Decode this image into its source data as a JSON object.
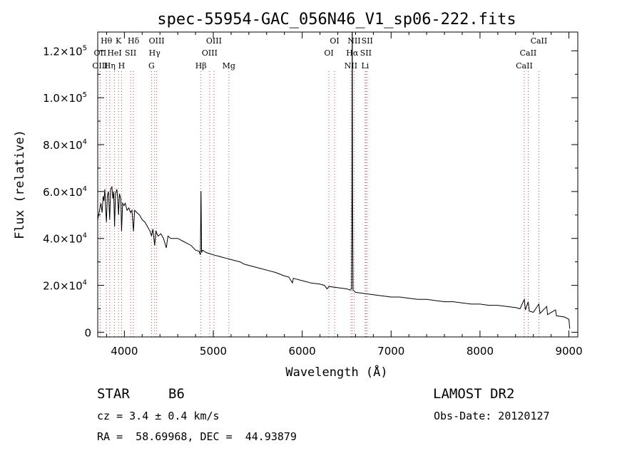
{
  "chart_data": {
    "type": "line",
    "title": "spec-55954-GAC_056N46_V1_sp06-222.fits",
    "xlabel": "Wavelength (Å)",
    "ylabel": "Flux (relative)",
    "xlim": [
      3700,
      9100
    ],
    "ylim": [
      -2000,
      128000
    ],
    "xticks": [
      {
        "value": 4000,
        "label": "4000"
      },
      {
        "value": 5000,
        "label": "5000"
      },
      {
        "value": 6000,
        "label": "6000"
      },
      {
        "value": 7000,
        "label": "7000"
      },
      {
        "value": 8000,
        "label": "8000"
      },
      {
        "value": 9000,
        "label": "9000"
      }
    ],
    "yticks": [
      {
        "value": 0,
        "label": "0",
        "exp": ""
      },
      {
        "value": 20000,
        "label": "2.0×10",
        "exp": "4"
      },
      {
        "value": 40000,
        "label": "4.0×10",
        "exp": "4"
      },
      {
        "value": 60000,
        "label": "6.0×10",
        "exp": "4"
      },
      {
        "value": 80000,
        "label": "8.0×10",
        "exp": "4"
      },
      {
        "value": 100000,
        "label": "1.0×10",
        "exp": "5"
      },
      {
        "value": 120000,
        "label": "1.2×10",
        "exp": "5"
      }
    ],
    "spectral_lines": [
      {
        "label": "Hθ",
        "x": 3798,
        "row": 1
      },
      {
        "label": "OII",
        "x": 3727,
        "row": 2
      },
      {
        "label": "OIII",
        "x": 3727,
        "row": 3
      },
      {
        "label": "K",
        "x": 3934,
        "row": 1
      },
      {
        "label": "HeI",
        "x": 3889,
        "row": 2
      },
      {
        "label": "Hη",
        "x": 3835,
        "row": 3
      },
      {
        "label": "SII",
        "x": 4070,
        "row": 2
      },
      {
        "label": "H",
        "x": 3968,
        "row": 3
      },
      {
        "label": "Hδ",
        "x": 4102,
        "row": 1
      },
      {
        "label": "OIII",
        "x": 4363,
        "row": 1
      },
      {
        "label": "Hγ",
        "x": 4340,
        "row": 2
      },
      {
        "label": "G",
        "x": 4305,
        "row": 3
      },
      {
        "label": "Hβ",
        "x": 4861,
        "row": 3
      },
      {
        "label": "OIII",
        "x": 5007,
        "row": 1
      },
      {
        "label": "OIII",
        "x": 4959,
        "row": 2
      },
      {
        "label": "Mg",
        "x": 5175,
        "row": 3
      },
      {
        "label": "OI",
        "x": 6364,
        "row": 1
      },
      {
        "label": "OI",
        "x": 6300,
        "row": 2
      },
      {
        "label": "NII",
        "x": 6584,
        "row": 1
      },
      {
        "label": "Hα",
        "x": 6563,
        "row": 2
      },
      {
        "label": "NII",
        "x": 6548,
        "row": 3
      },
      {
        "label": "SII",
        "x": 6731,
        "row": 1
      },
      {
        "label": "SII",
        "x": 6716,
        "row": 2
      },
      {
        "label": "Li",
        "x": 6708,
        "row": 3
      },
      {
        "label": "CaII",
        "x": 8662,
        "row": 1
      },
      {
        "label": "CaII",
        "x": 8542,
        "row": 2
      },
      {
        "label": "CaII",
        "x": 8498,
        "row": 3
      }
    ],
    "series": [
      {
        "name": "flux",
        "points": [
          [
            3700,
            48000
          ],
          [
            3720,
            52000
          ],
          [
            3735,
            55000
          ],
          [
            3750,
            51000
          ],
          [
            3760,
            58000
          ],
          [
            3770,
            56000
          ],
          [
            3780,
            61000
          ],
          [
            3790,
            52000
          ],
          [
            3798,
            47000
          ],
          [
            3808,
            58000
          ],
          [
            3820,
            60000
          ],
          [
            3835,
            48000
          ],
          [
            3845,
            61000
          ],
          [
            3860,
            62000
          ],
          [
            3870,
            57000
          ],
          [
            3880,
            60000
          ],
          [
            3889,
            45000
          ],
          [
            3900,
            59000
          ],
          [
            3915,
            61000
          ],
          [
            3925,
            57000
          ],
          [
            3934,
            50000
          ],
          [
            3945,
            59000
          ],
          [
            3960,
            57000
          ],
          [
            3968,
            43000
          ],
          [
            3980,
            55000
          ],
          [
            3995,
            54000
          ],
          [
            4010,
            55000
          ],
          [
            4030,
            52000
          ],
          [
            4050,
            53000
          ],
          [
            4070,
            51000
          ],
          [
            4085,
            52000
          ],
          [
            4102,
            43000
          ],
          [
            4115,
            52000
          ],
          [
            4140,
            51000
          ],
          [
            4170,
            50000
          ],
          [
            4200,
            48000
          ],
          [
            4230,
            47000
          ],
          [
            4260,
            45000
          ],
          [
            4290,
            43000
          ],
          [
            4305,
            41000
          ],
          [
            4320,
            44000
          ],
          [
            4340,
            37000
          ],
          [
            4355,
            43000
          ],
          [
            4380,
            41000
          ],
          [
            4410,
            42000
          ],
          [
            4440,
            40000
          ],
          [
            4471,
            36000
          ],
          [
            4490,
            41000
          ],
          [
            4520,
            40000
          ],
          [
            4560,
            40000
          ],
          [
            4600,
            40000
          ],
          [
            4650,
            39000
          ],
          [
            4700,
            38000
          ],
          [
            4750,
            37000
          ],
          [
            4800,
            35000
          ],
          [
            4840,
            34500
          ],
          [
            4855,
            33000
          ],
          [
            4861,
            60000
          ],
          [
            4862,
            60000
          ],
          [
            4868,
            34000
          ],
          [
            4880,
            35000
          ],
          [
            4920,
            34000
          ],
          [
            4960,
            33500
          ],
          [
            5000,
            33000
          ],
          [
            5050,
            32500
          ],
          [
            5100,
            32000
          ],
          [
            5150,
            31500
          ],
          [
            5200,
            31000
          ],
          [
            5250,
            30500
          ],
          [
            5300,
            30000
          ],
          [
            5350,
            29000
          ],
          [
            5400,
            28500
          ],
          [
            5500,
            27500
          ],
          [
            5600,
            26500
          ],
          [
            5700,
            25500
          ],
          [
            5800,
            24000
          ],
          [
            5850,
            23500
          ],
          [
            5890,
            21000
          ],
          [
            5900,
            23000
          ],
          [
            6000,
            22000
          ],
          [
            6100,
            21000
          ],
          [
            6200,
            20500
          ],
          [
            6250,
            20000
          ],
          [
            6280,
            18500
          ],
          [
            6300,
            19500
          ],
          [
            6400,
            19000
          ],
          [
            6500,
            18500
          ],
          [
            6540,
            18000
          ],
          [
            6555,
            18500
          ],
          [
            6560,
            60000
          ],
          [
            6562,
            130000
          ],
          [
            6564,
            130000
          ],
          [
            6566,
            60000
          ],
          [
            6572,
            18000
          ],
          [
            6600,
            17000
          ],
          [
            6700,
            16500
          ],
          [
            6800,
            16000
          ],
          [
            6900,
            15500
          ],
          [
            7000,
            15000
          ],
          [
            7100,
            15000
          ],
          [
            7200,
            14500
          ],
          [
            7300,
            14000
          ],
          [
            7400,
            14000
          ],
          [
            7500,
            13500
          ],
          [
            7600,
            13000
          ],
          [
            7700,
            13000
          ],
          [
            7800,
            12500
          ],
          [
            7900,
            12000
          ],
          [
            8000,
            12000
          ],
          [
            8100,
            11500
          ],
          [
            8200,
            11500
          ],
          [
            8300,
            11000
          ],
          [
            8400,
            10500
          ],
          [
            8450,
            10000
          ],
          [
            8498,
            14000
          ],
          [
            8510,
            9500
          ],
          [
            8542,
            13000
          ],
          [
            8555,
            9000
          ],
          [
            8600,
            8500
          ],
          [
            8662,
            12000
          ],
          [
            8675,
            8000
          ],
          [
            8750,
            11000
          ],
          [
            8760,
            7500
          ],
          [
            8850,
            9500
          ],
          [
            8860,
            7000
          ],
          [
            8950,
            6500
          ],
          [
            9000,
            5500
          ],
          [
            9010,
            1500
          ]
        ]
      }
    ]
  },
  "info": {
    "object_type": "STAR",
    "subclass": "B6",
    "survey": "LAMOST DR2",
    "redshift": "cz = 3.4 ± 0.4 km/s",
    "obs_date": "Obs-Date: 20120127",
    "coords": "RA =  58.69968, DEC =  44.93879"
  }
}
